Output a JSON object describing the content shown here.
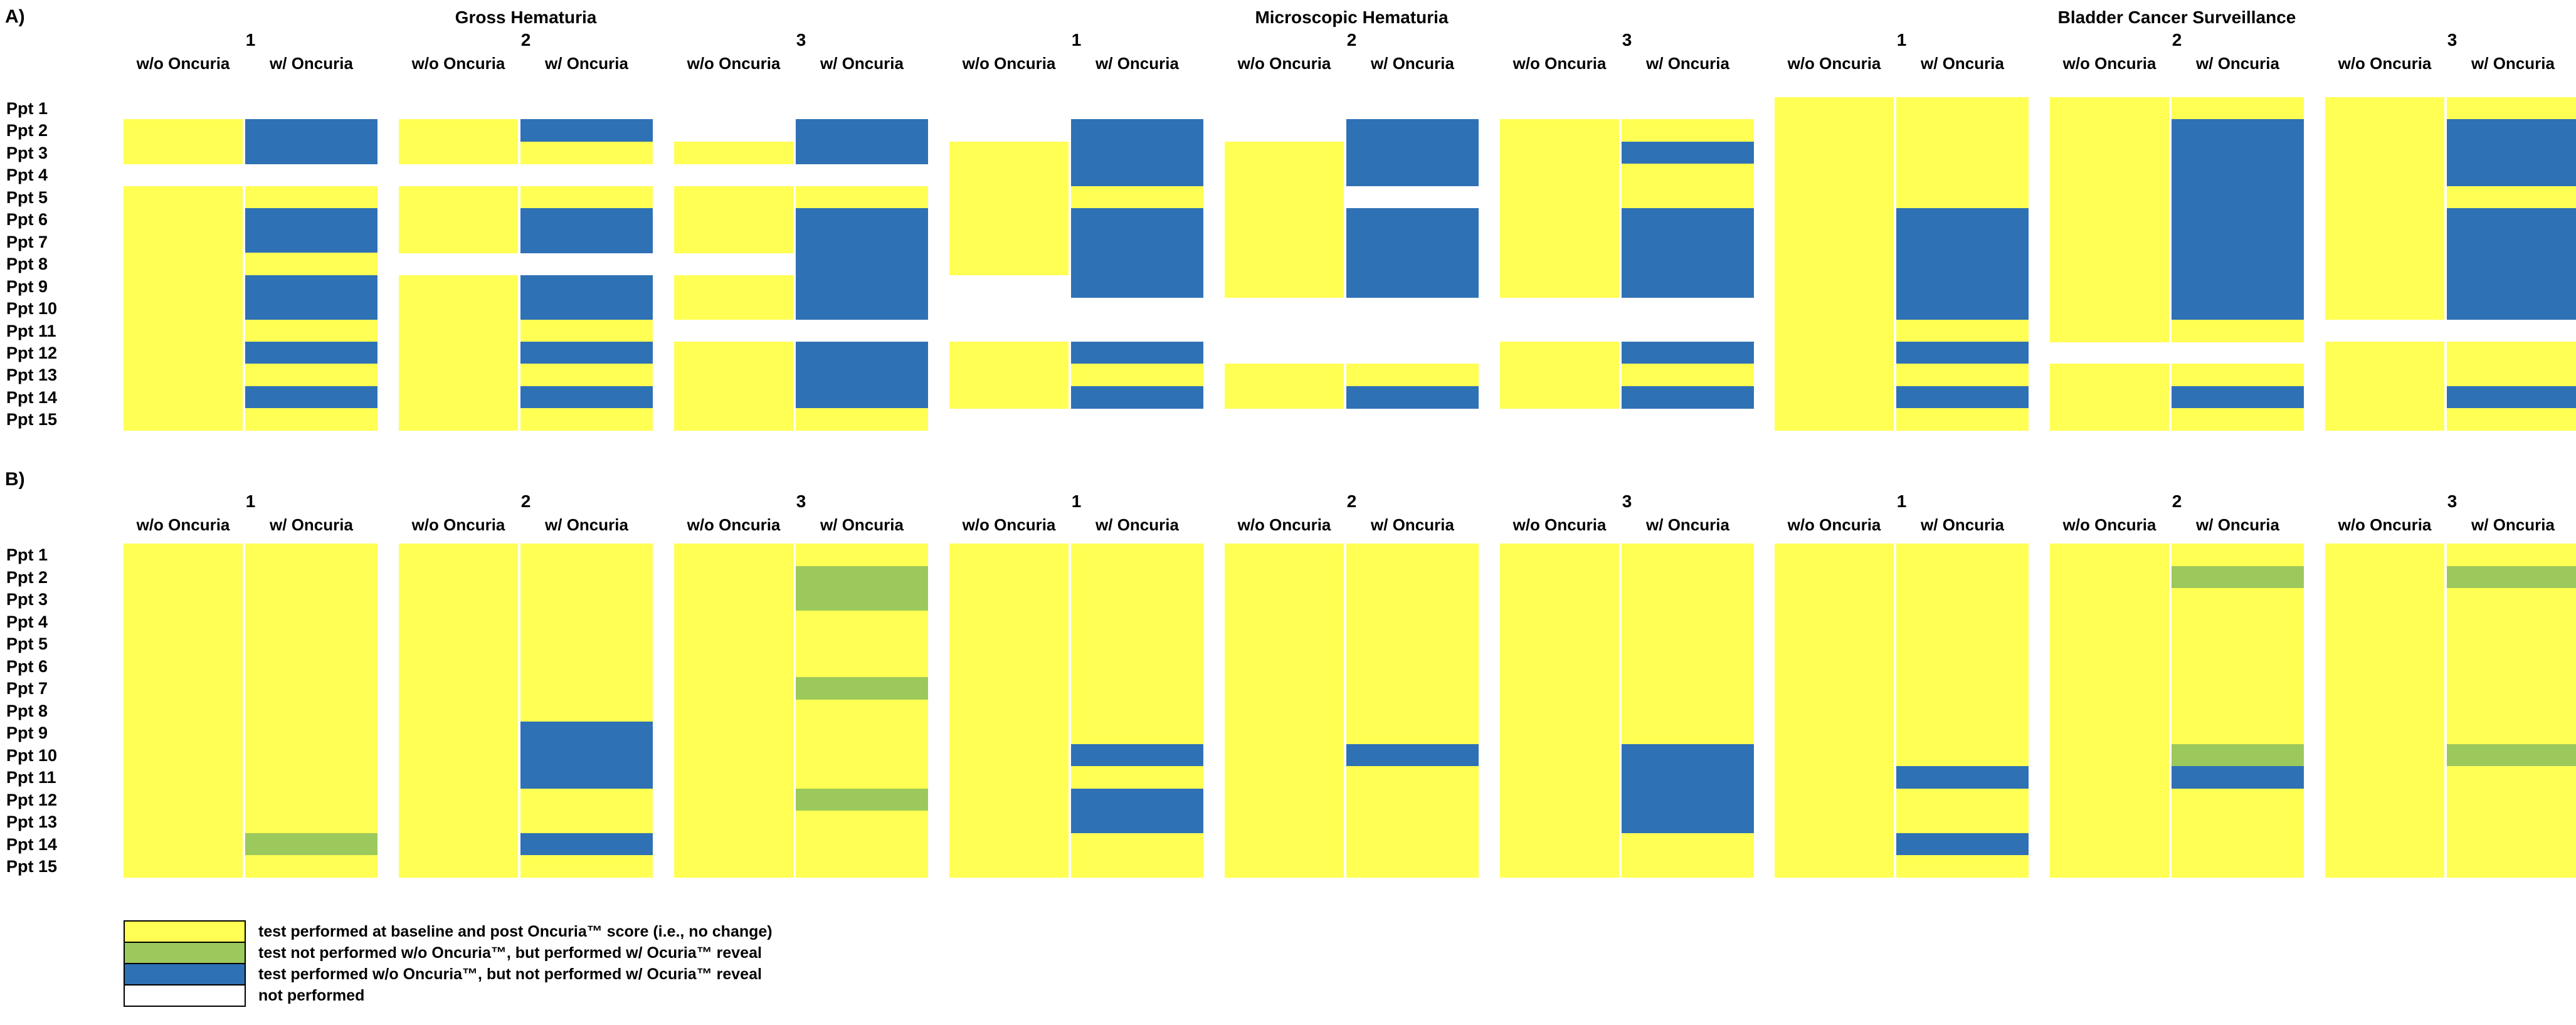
{
  "chart_data": {
    "type": "heatmap",
    "description_values": {
      "Y": "test performed at baseline and post Oncuria score (no change)",
      "G": "test not performed w/o Oncuria, but performed w/ Oncuria reveal",
      "B": "test performed w/o Oncuria, but not performed w/ Oncuria reveal",
      "W": "not performed"
    },
    "row_labels": [
      "Ppt 1",
      "Ppt 2",
      "Ppt 3",
      "Ppt 4",
      "Ppt 5",
      "Ppt 6",
      "Ppt 7",
      "Ppt 8",
      "Ppt 9",
      "Ppt 10",
      "Ppt 11",
      "Ppt 12",
      "Ppt 13",
      "Ppt 14",
      "Ppt 15"
    ],
    "column_headers": {
      "without": "w/o Oncuria",
      "with": "w/ Oncuria"
    },
    "panels": [
      {
        "label": "A)",
        "sections": [
          {
            "title": "Gross Hematuria",
            "pairs": [
              {
                "number": "1",
                "without": "WYYWYYYYYYYYYYY",
                "with": "WBBWYBBYBBYBYBY"
              },
              {
                "number": "2",
                "without": "WYYWYYYWYYYYYYY",
                "with": "WBYWYBBWBBYBYBY"
              },
              {
                "number": "3",
                "without": "WWYWYYYWYYWYYYY",
                "with": "WBBWYBBBBBWBBBY"
              }
            ]
          },
          {
            "title": "Microscopic Hematuria",
            "pairs": [
              {
                "number": "1",
                "without": "WWYYYYYYWWWYYYW",
                "with": "WBBBYBBBBWWBYBW"
              },
              {
                "number": "2",
                "without": "WWYYYYYYYWWWYYW",
                "with": "WBBBWBBBBWWWYBW"
              },
              {
                "number": "3",
                "without": "WYYYYYYYYWWYYYW",
                "with": "WYBYYBBBBWWBYBW"
              }
            ]
          },
          {
            "title": "Bladder Cancer Surveillance",
            "pairs": [
              {
                "number": "1",
                "without": "YYYYYYYYYYYYYYY",
                "with": "YYYYYBBBBBYBYBY"
              },
              {
                "number": "2",
                "without": "YYYYYYYYYYYWYYY",
                "with": "YBBBBBBBBBYWYBY"
              },
              {
                "number": "3",
                "without": "YYYYYYYYYYWYYYY",
                "with": "YBBBYBBBBBWYYBY"
              }
            ]
          }
        ]
      },
      {
        "label": "B)",
        "sections": [
          {
            "title": "",
            "pairs": [
              {
                "number": "1",
                "without": "YYYYYYYYYYYYYYY",
                "with": "YYYYYYYYYYYYYGY"
              },
              {
                "number": "2",
                "without": "YYYYYYYYYYYYYYY",
                "with": "YYYYYYYYBBBYYBY"
              },
              {
                "number": "3",
                "without": "YYYYYYYYYYYYYYY",
                "with": "YGGYYYGYYYYGYYY"
              }
            ]
          },
          {
            "title": "",
            "pairs": [
              {
                "number": "1",
                "without": "YYYYYYYYYYYYYYY",
                "with": "YYYYYYYYYBYBBYY"
              },
              {
                "number": "2",
                "without": "YYYYYYYYYYYYYYY",
                "with": "YYYYYYYYYBYYYYY"
              },
              {
                "number": "3",
                "without": "YYYYYYYYYYYYYYY",
                "with": "YYYYYYYYYBBBBYY"
              }
            ]
          },
          {
            "title": "",
            "pairs": [
              {
                "number": "1",
                "without": "YYYYYYYYYYYYYYY",
                "with": "YYYYYYYYYYBYYBY"
              },
              {
                "number": "2",
                "without": "YYYYYYYYYYYYYYY",
                "with": "YGYYYYYYYGBYYYY"
              },
              {
                "number": "3",
                "without": "YYYYYYYYYYYYYYY",
                "with": "YGYYYYYYYGYYYYY"
              }
            ]
          }
        ]
      }
    ],
    "legend": [
      {
        "color": "yellow",
        "label": "test performed at baseline and post Oncuria™ score (i.e., no change)"
      },
      {
        "color": "green",
        "label": "test not performed w/o Oncuria™, but performed w/ Ocuria™ reveal"
      },
      {
        "color": "blue",
        "label": "test performed w/o Oncuria™, but not performed w/ Ocuria™ reveal"
      },
      {
        "color": "white",
        "label": "not performed"
      }
    ],
    "colors": {
      "yellow": "#FFFF54",
      "green": "#9CC95C",
      "blue": "#2F71B5",
      "white": "#FFFFFF"
    }
  }
}
